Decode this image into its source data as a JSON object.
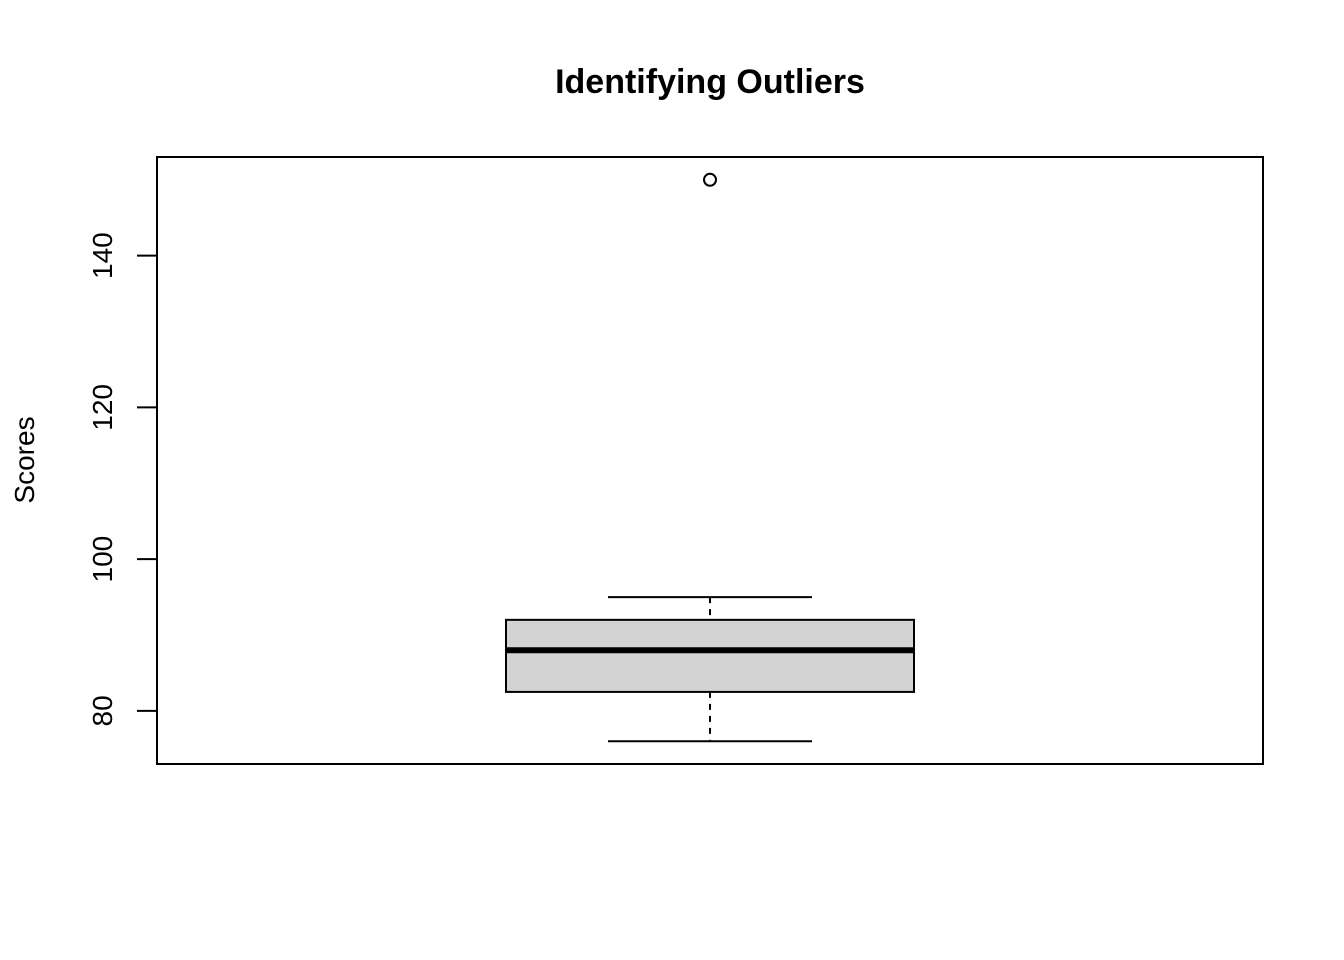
{
  "chart_data": {
    "type": "boxplot",
    "title": "Identifying Outliers",
    "ylabel": "Scores",
    "xlabel": "",
    "ylim": [
      73,
      153
    ],
    "y_ticks": [
      80,
      100,
      120,
      140
    ],
    "box": {
      "whisker_low": 76,
      "q1": 82.5,
      "median": 88,
      "q3": 92,
      "whisker_high": 95
    },
    "outliers": [
      150
    ],
    "grid": false,
    "colors": {
      "box_fill": "#d3d3d3",
      "line": "#000000",
      "background": "#ffffff"
    }
  }
}
